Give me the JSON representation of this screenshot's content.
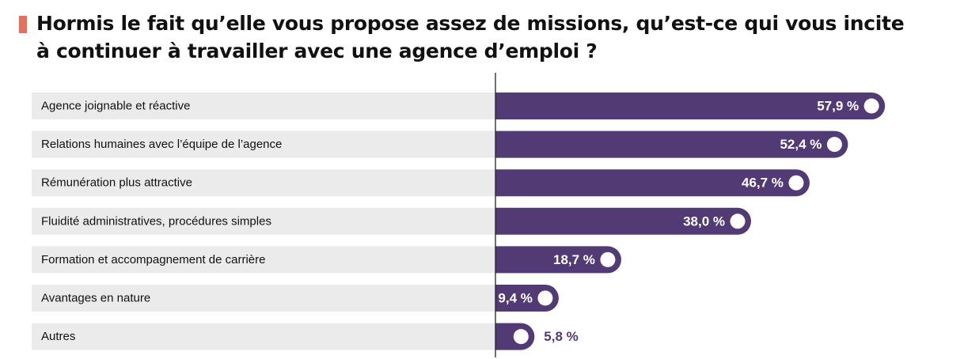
{
  "header": {
    "accent_color": "#e8705a",
    "title_line1": "Hormis le fait qu’elle vous propose assez de missions, qu’est-ce qui vous incite",
    "title_line2": "à continuer à travailler avec une agence d’emploi ?"
  },
  "chart_data": {
    "type": "bar",
    "orientation": "horizontal",
    "categories": [
      "Agence joignable et réactive",
      "Relations humaines avec l’équipe de l’agence",
      "Rémunération plus attractive",
      "Fluidité administratives, procédures simples",
      "Formation et accompagnement de carrière",
      "Avantages en nature",
      "Autres"
    ],
    "values": [
      57.9,
      52.4,
      46.7,
      38.0,
      18.7,
      9.4,
      5.8
    ],
    "value_labels": [
      "57,9 %",
      "52,4 %",
      "46,7 %",
      "38,0 %",
      "18,7 %",
      "9,4 %",
      "5,8 %"
    ],
    "unit": "%",
    "colors": {
      "bar": "#523a74",
      "row_background": "#ebebeb",
      "value_text_inside": "#ffffff",
      "value_text_outside": "#523a74",
      "marker": "#ffffff"
    }
  }
}
